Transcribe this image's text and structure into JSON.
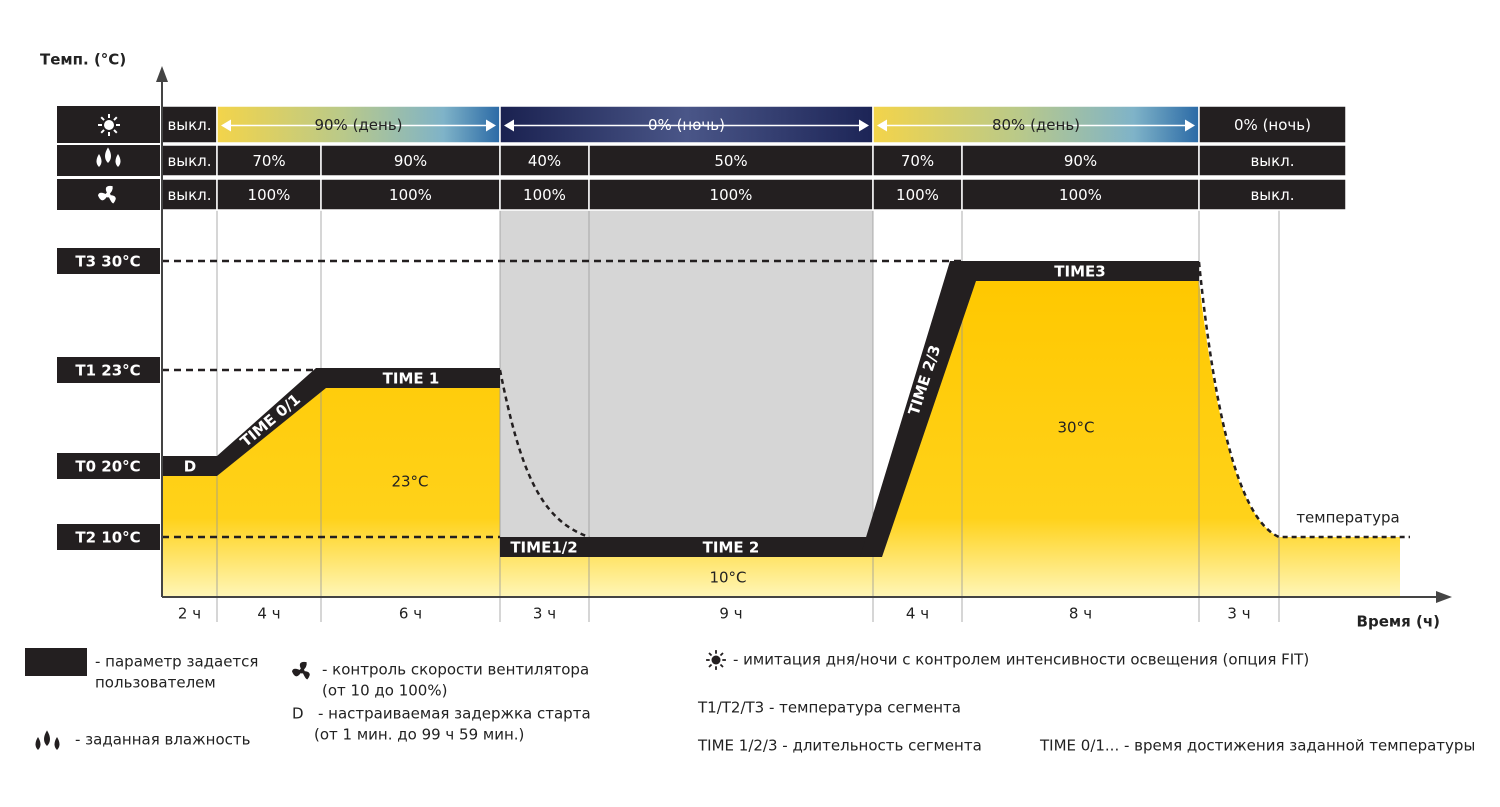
{
  "axes": {
    "y_label": "Темп. (°C)",
    "x_label": "Время (ч)"
  },
  "table": {
    "light": [
      "выкл.",
      "90% (день)",
      "0% (ночь)",
      "80% (день)",
      "0% (ночь)"
    ],
    "humidity": [
      "выкл.",
      "70%",
      "90%",
      "40%",
      "50%",
      "70%",
      "90%",
      "выкл."
    ],
    "fan": [
      "выкл.",
      "100%",
      "100%",
      "100%",
      "100%",
      "100%",
      "100%",
      "выкл."
    ]
  },
  "levels": [
    "T3 30°C",
    "T1 23°C",
    "T0 20°C",
    "T2 10°C"
  ],
  "segments": [
    "D",
    "TIME 0/1",
    "TIME 1",
    "TIME1/2",
    "TIME 2",
    "TIME 2/3",
    "TIME3"
  ],
  "segment_temps": [
    "23°C",
    "10°C",
    "30°C"
  ],
  "curve_label": "температура",
  "durations": [
    "2 ч",
    "4 ч",
    "6 ч",
    "3 ч",
    "9 ч",
    "4 ч",
    "8 ч",
    "3 ч"
  ],
  "legend": {
    "user_param": [
      "- параметр задается",
      "пользователем"
    ],
    "humidity": "- заданная влажность",
    "fan": [
      "- контроль скорости вентилятора",
      "(от 10 до 100%)"
    ],
    "delay_symbol": "D",
    "delay": [
      "- настраиваемая задержка старта",
      "(от 1 мин. до 99 ч 59 мин.)"
    ],
    "light": "- имитация дня/ночи с контролем интенсивности освещения (опция FIT)",
    "segment_temp": "T1/T2/T3 - температура сегмента",
    "segment_time": "TIME  1/2/3 - длительность сегмента",
    "ramp_time": "TIME 0/1... - время достижения заданной температуры"
  }
}
